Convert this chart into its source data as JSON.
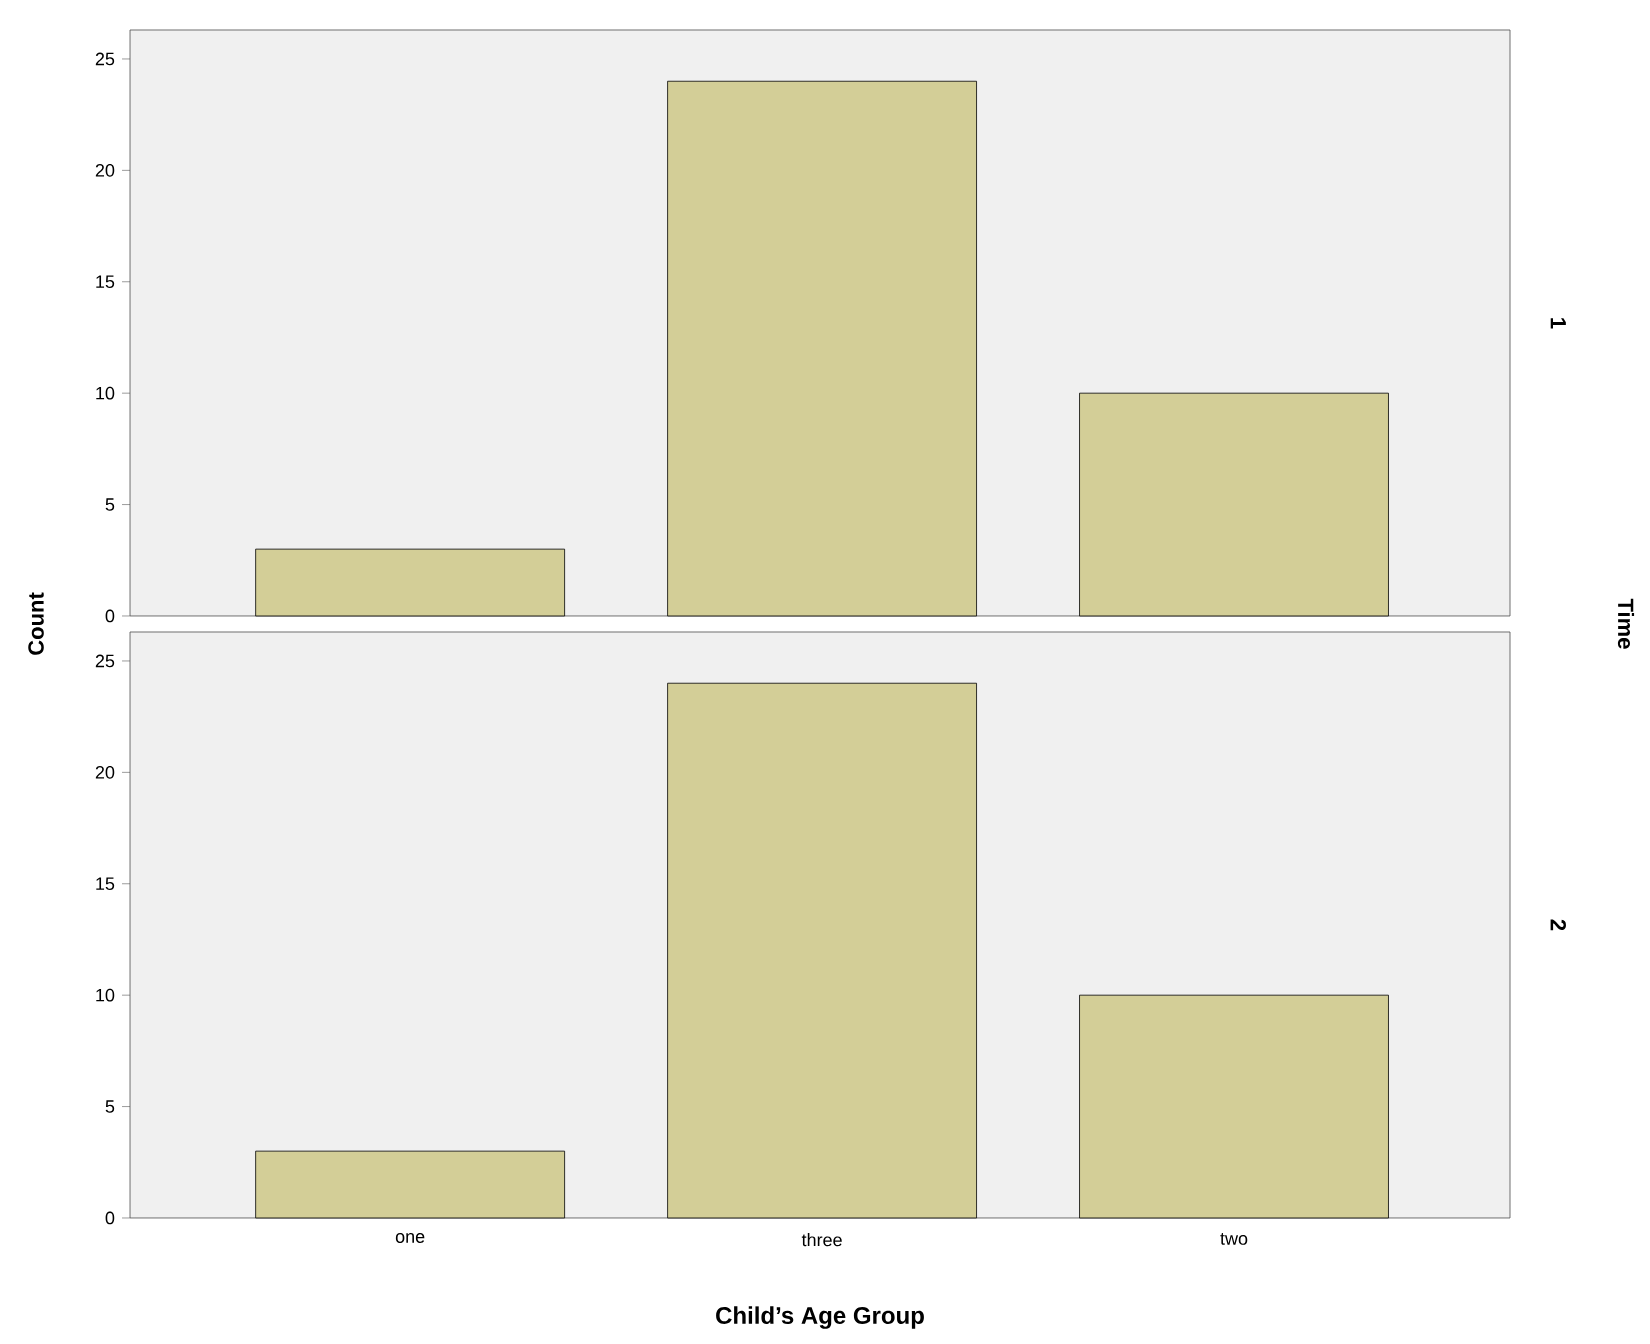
{
  "chart_data": [
    {
      "type": "bar",
      "ylabel": "Count",
      "y2label": "1",
      "annotations": [
        "Time"
      ],
      "categories": [
        null,
        null,
        null
      ],
      "values": [
        3,
        24,
        10
      ],
      "color": "#d3ce97",
      "ylim": [
        0,
        26.3
      ],
      "yticks": [
        0,
        5,
        10,
        15,
        20,
        25
      ],
      "tick_labels": "y"
    },
    {
      "type": "bar",
      "y2label": "2",
      "xlabel": "Child’s Age Group",
      "categories": [
        "one",
        "three",
        "two"
      ],
      "values": [
        3,
        24,
        10
      ],
      "color": "#d3ce97",
      "ylim": [
        0,
        26.3
      ],
      "yticks": [
        0,
        5,
        10,
        15,
        20,
        25
      ]
    }
  ]
}
